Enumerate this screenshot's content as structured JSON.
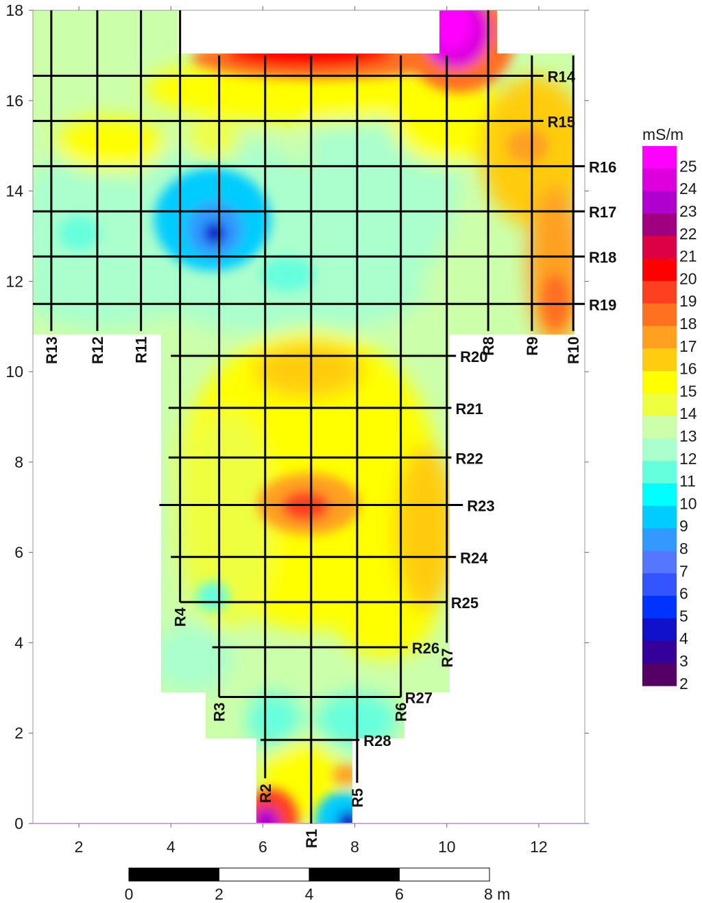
{
  "map": {
    "x_ticks": [
      "2",
      "4",
      "6",
      "8",
      "10",
      "12"
    ],
    "y_ticks": [
      "0",
      "2",
      "4",
      "6",
      "8",
      "10",
      "12",
      "14",
      "16",
      "18"
    ],
    "x_range": [
      1,
      13
    ],
    "y_range": [
      0,
      18
    ]
  },
  "profiles": {
    "vertical": [
      {
        "name": "R13",
        "x": 1.4,
        "y0": 10.9,
        "y1": 18
      },
      {
        "name": "R12",
        "x": 2.4,
        "y0": 10.9,
        "y1": 18
      },
      {
        "name": "R11",
        "x": 3.35,
        "y0": 10.9,
        "y1": 18
      },
      {
        "name": "R4",
        "x": 4.2,
        "y0": 4.9,
        "y1": 18
      },
      {
        "name": "R3",
        "x": 5.05,
        "y0": 2.8,
        "y1": 17
      },
      {
        "name": "R2",
        "x": 6.05,
        "y0": 1.0,
        "y1": 17
      },
      {
        "name": "R1",
        "x": 7.05,
        "y0": 0.0,
        "y1": 17
      },
      {
        "name": "R5",
        "x": 8.05,
        "y0": 0.9,
        "y1": 17
      },
      {
        "name": "R6",
        "x": 9.0,
        "y0": 2.8,
        "y1": 17
      },
      {
        "name": "R7",
        "x": 10.0,
        "y0": 4.0,
        "y1": 17
      },
      {
        "name": "R8",
        "x": 10.9,
        "y0": 10.9,
        "y1": 18
      },
      {
        "name": "R9",
        "x": 11.85,
        "y0": 10.9,
        "y1": 17
      },
      {
        "name": "R10",
        "x": 12.75,
        "y0": 10.9,
        "y1": 17
      }
    ],
    "horizontal": [
      {
        "name": "R14",
        "y": 16.55,
        "x0": 1,
        "x1": 12.1
      },
      {
        "name": "R15",
        "y": 15.55,
        "x0": 1,
        "x1": 12.1
      },
      {
        "name": "R16",
        "y": 14.55,
        "x0": 1,
        "x1": 13.0
      },
      {
        "name": "R17",
        "y": 13.55,
        "x0": 1,
        "x1": 13.0
      },
      {
        "name": "R18",
        "y": 12.55,
        "x0": 1,
        "x1": 13.0
      },
      {
        "name": "R19",
        "y": 11.5,
        "x0": 1,
        "x1": 13.0
      },
      {
        "name": "R20",
        "y": 10.35,
        "x0": 4.0,
        "x1": 10.2
      },
      {
        "name": "R21",
        "y": 9.2,
        "x0": 3.95,
        "x1": 10.1
      },
      {
        "name": "R22",
        "y": 8.1,
        "x0": 3.95,
        "x1": 10.1
      },
      {
        "name": "R23",
        "y": 7.05,
        "x0": 3.75,
        "x1": 10.35
      },
      {
        "name": "R24",
        "y": 5.9,
        "x0": 4.0,
        "x1": 10.2
      },
      {
        "name": "R25",
        "y": 4.9,
        "x0": 4.2,
        "x1": 10.0
      },
      {
        "name": "R26",
        "y": 3.9,
        "x0": 4.9,
        "x1": 9.15
      },
      {
        "name": "R27",
        "y": 2.8,
        "x0": 5.05,
        "x1": 9.0
      },
      {
        "name": "R28",
        "y": 1.85,
        "x0": 5.95,
        "x1": 8.1
      }
    ]
  },
  "legend": {
    "title": "mS/m",
    "values": [
      "25",
      "24",
      "23",
      "22",
      "21",
      "20",
      "19",
      "18",
      "17",
      "16",
      "15",
      "14",
      "13",
      "12",
      "11",
      "10",
      "9",
      "8",
      "7",
      "6",
      "5",
      "4",
      "3",
      "2"
    ],
    "colors": [
      "#ff00ff",
      "#dd00dd",
      "#b000d0",
      "#a00080",
      "#dd0044",
      "#ff0000",
      "#ff4020",
      "#ff7020",
      "#ffa020",
      "#ffcc10",
      "#ffff00",
      "#eeff40",
      "#ccffaa",
      "#aaffcc",
      "#66ffdd",
      "#00ffff",
      "#00ccff",
      "#3399ff",
      "#5577ff",
      "#3355ff",
      "#0033ff",
      "#1111cc",
      "#330099",
      "#550066"
    ]
  },
  "scale_bar": {
    "labels": [
      "0",
      "2",
      "4",
      "6",
      "8 m"
    ]
  },
  "anomalies": [
    {
      "name": "high-north",
      "x": 7.2,
      "y": 17.0,
      "value": 21
    },
    {
      "name": "max-northeast",
      "x": 10.4,
      "y": 17.8,
      "value": 25
    },
    {
      "name": "low-center",
      "x": 5.0,
      "y": 13.0,
      "value": 6
    },
    {
      "name": "high-center",
      "x": 7.05,
      "y": 7.05,
      "value": 19
    },
    {
      "name": "high-east",
      "x": 11.95,
      "y": 15.0,
      "value": 18
    },
    {
      "name": "high-south",
      "x": 6.2,
      "y": 0.2,
      "value": 21
    },
    {
      "name": "low-south",
      "x": 7.9,
      "y": 0.1,
      "value": 5
    }
  ]
}
